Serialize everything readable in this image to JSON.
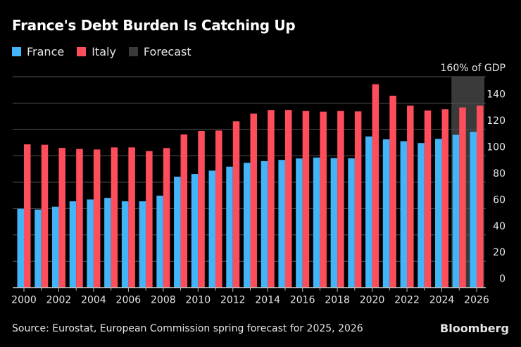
{
  "chart_data": {
    "type": "bar",
    "title": "France's Debt Burden Is Catching Up",
    "ylabel": "160% of GDP",
    "ylim": [
      0,
      160
    ],
    "yticks": [
      0,
      20,
      40,
      60,
      80,
      100,
      120,
      140
    ],
    "grid": true,
    "legend_position": "top-left",
    "categories": [
      2000,
      2001,
      2002,
      2003,
      2004,
      2005,
      2006,
      2007,
      2008,
      2009,
      2010,
      2011,
      2012,
      2013,
      2014,
      2015,
      2016,
      2017,
      2018,
      2019,
      2020,
      2021,
      2022,
      2023,
      2024,
      2025,
      2026
    ],
    "xtick_labels": [
      "2000",
      "2002",
      "2004",
      "2006",
      "2008",
      "2010",
      "2012",
      "2014",
      "2016",
      "2018",
      "2020",
      "2022",
      "2024",
      "2026"
    ],
    "series": [
      {
        "name": "France",
        "color": "#42b4f7",
        "values": [
          59.8,
          59.3,
          61.4,
          65.5,
          66.9,
          68.1,
          65.5,
          65.5,
          69.8,
          84.2,
          86.3,
          88.8,
          91.8,
          94.7,
          96.0,
          96.9,
          98.0,
          98.7,
          98.3,
          98.1,
          114.7,
          112.5,
          111.1,
          109.7,
          112.9,
          115.9,
          118.2
        ]
      },
      {
        "name": "Italy",
        "color": "#ff4e5b",
        "values": [
          108.7,
          108.4,
          106.0,
          105.2,
          104.8,
          106.4,
          106.4,
          103.6,
          105.9,
          116.2,
          118.9,
          119.2,
          126.2,
          132.0,
          134.8,
          134.8,
          134.0,
          133.5,
          134.0,
          133.7,
          154.3,
          145.6,
          138.1,
          134.4,
          135.3,
          136.7,
          138.1
        ]
      }
    ],
    "forecast": {
      "name": "Forecast",
      "color": "#3a3a3a",
      "range": [
        2025,
        2026
      ]
    }
  },
  "source": "Source: Eurostat, European Commission spring forecast for 2025, 2026",
  "brand": "Bloomberg"
}
